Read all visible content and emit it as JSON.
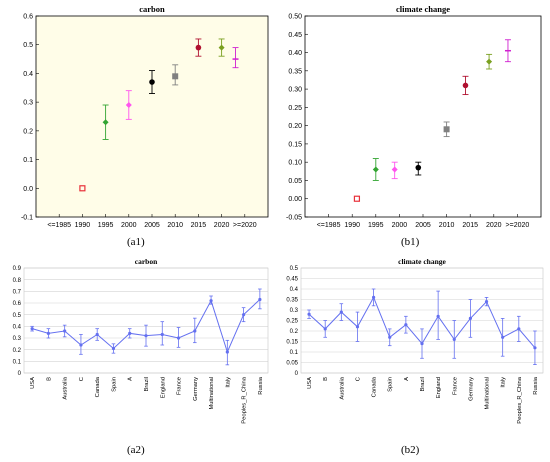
{
  "panel_labels": [
    "(a1)",
    "(b1)",
    "(a2)",
    "(b2)"
  ],
  "chart_data": [
    {
      "type": "scatter",
      "title": "carbon",
      "categories": [
        "<=1985",
        "1990",
        "1995",
        "2000",
        "2005",
        "2010",
        "2015",
        "2020",
        ">=2020"
      ],
      "ylim": [
        -0.1,
        0.6
      ],
      "yticks": [
        "-0.1",
        "0.0",
        "0.1",
        "0.2",
        "0.3",
        "0.4",
        "0.5",
        "0.6"
      ],
      "background": "#fffde8",
      "points": [
        {
          "x": 1990,
          "y": 0.0,
          "lo": 0.0,
          "hi": 0.0,
          "color": "#e8313a",
          "marker": "square-open"
        },
        {
          "x": 1995,
          "y": 0.23,
          "lo": 0.17,
          "hi": 0.29,
          "color": "#33a532",
          "marker": "diamond"
        },
        {
          "x": 2000,
          "y": 0.29,
          "lo": 0.24,
          "hi": 0.34,
          "color": "#ff55ee",
          "marker": "diamond"
        },
        {
          "x": 2005,
          "y": 0.37,
          "lo": 0.33,
          "hi": 0.41,
          "color": "#000000",
          "marker": "circle"
        },
        {
          "x": 2010,
          "y": 0.39,
          "lo": 0.36,
          "hi": 0.43,
          "color": "#808080",
          "marker": "square"
        },
        {
          "x": 2015,
          "y": 0.49,
          "lo": 0.46,
          "hi": 0.52,
          "color": "#b01030",
          "marker": "circle"
        },
        {
          "x": 2020,
          "y": 0.49,
          "lo": 0.46,
          "hi": 0.52,
          "color": "#7aa020",
          "marker": "diamond"
        },
        {
          "x": 2023,
          "y": 0.45,
          "lo": 0.42,
          "hi": 0.49,
          "color": "#d020d0",
          "marker": "dash"
        }
      ]
    },
    {
      "type": "scatter",
      "title": "climate change",
      "categories": [
        "<=1985",
        "1990",
        "1995",
        "2000",
        "2005",
        "2010",
        "2015",
        "2020",
        ">=2020"
      ],
      "ylim": [
        -0.05,
        0.5
      ],
      "yticks": [
        "-0.05",
        "0.00",
        "0.05",
        "0.10",
        "0.15",
        "0.20",
        "0.25",
        "0.30",
        "0.35",
        "0.40",
        "0.45",
        "0.50"
      ],
      "background": "#ffffff",
      "points": [
        {
          "x": 1991,
          "y": 0.0,
          "lo": 0.0,
          "hi": 0.0,
          "color": "#e8313a",
          "marker": "square-open"
        },
        {
          "x": 1995,
          "y": 0.08,
          "lo": 0.05,
          "hi": 0.11,
          "color": "#33a532",
          "marker": "diamond"
        },
        {
          "x": 1999,
          "y": 0.08,
          "lo": 0.055,
          "hi": 0.1,
          "color": "#ff55ee",
          "marker": "diamond"
        },
        {
          "x": 2004,
          "y": 0.085,
          "lo": 0.065,
          "hi": 0.1,
          "color": "#000000",
          "marker": "circle"
        },
        {
          "x": 2010,
          "y": 0.19,
          "lo": 0.17,
          "hi": 0.21,
          "color": "#808080",
          "marker": "square"
        },
        {
          "x": 2014,
          "y": 0.31,
          "lo": 0.285,
          "hi": 0.335,
          "color": "#b01030",
          "marker": "circle"
        },
        {
          "x": 2019,
          "y": 0.375,
          "lo": 0.355,
          "hi": 0.395,
          "color": "#7aa020",
          "marker": "diamond"
        },
        {
          "x": 2023,
          "y": 0.405,
          "lo": 0.375,
          "hi": 0.435,
          "color": "#d020d0",
          "marker": "dash"
        }
      ]
    },
    {
      "type": "line",
      "title": "carbon",
      "ylim": [
        0,
        0.9
      ],
      "yticks": [
        "0",
        "0.1",
        "0.2",
        "0.3",
        "0.4",
        "0.5",
        "0.6",
        "0.7",
        "0.8",
        "0.9"
      ],
      "color": "#6470f0",
      "categories": [
        "USA",
        "B",
        "Australia",
        "C",
        "Canada",
        "Spain",
        "A",
        "Brazil",
        "England",
        "France",
        "Germany",
        "Multinational",
        "Italy",
        "Peoples_R_China",
        "Russia"
      ],
      "values": [
        0.38,
        0.34,
        0.36,
        0.24,
        0.33,
        0.21,
        0.34,
        0.32,
        0.33,
        0.3,
        0.36,
        0.62,
        0.18,
        0.5,
        0.63
      ],
      "lo": [
        0.36,
        0.3,
        0.31,
        0.16,
        0.28,
        0.17,
        0.3,
        0.23,
        0.24,
        0.22,
        0.26,
        0.59,
        0.07,
        0.44,
        0.55
      ],
      "hi": [
        0.4,
        0.38,
        0.41,
        0.33,
        0.38,
        0.25,
        0.38,
        0.41,
        0.44,
        0.39,
        0.47,
        0.66,
        0.28,
        0.56,
        0.72
      ]
    },
    {
      "type": "line",
      "title": "climate change",
      "ylim": [
        0,
        0.5
      ],
      "yticks": [
        "0",
        "0.05",
        "0.1",
        "0.15",
        "0.2",
        "0.25",
        "0.3",
        "0.35",
        "0.4",
        "0.45",
        "0.5"
      ],
      "color": "#6470f0",
      "categories": [
        "USA",
        "B",
        "Australia",
        "C",
        "Canada",
        "Spain",
        "A",
        "Brazil",
        "England",
        "France",
        "Germany",
        "Multinational",
        "Italy",
        "Peoples_R_China",
        "Russia"
      ],
      "values": [
        0.28,
        0.21,
        0.29,
        0.22,
        0.36,
        0.17,
        0.23,
        0.14,
        0.27,
        0.16,
        0.26,
        0.34,
        0.17,
        0.21,
        0.12
      ],
      "lo": [
        0.26,
        0.17,
        0.25,
        0.15,
        0.32,
        0.13,
        0.19,
        0.07,
        0.16,
        0.07,
        0.17,
        0.32,
        0.08,
        0.15,
        0.04
      ],
      "hi": [
        0.3,
        0.25,
        0.33,
        0.29,
        0.4,
        0.21,
        0.27,
        0.21,
        0.39,
        0.25,
        0.35,
        0.36,
        0.26,
        0.27,
        0.2
      ]
    }
  ]
}
